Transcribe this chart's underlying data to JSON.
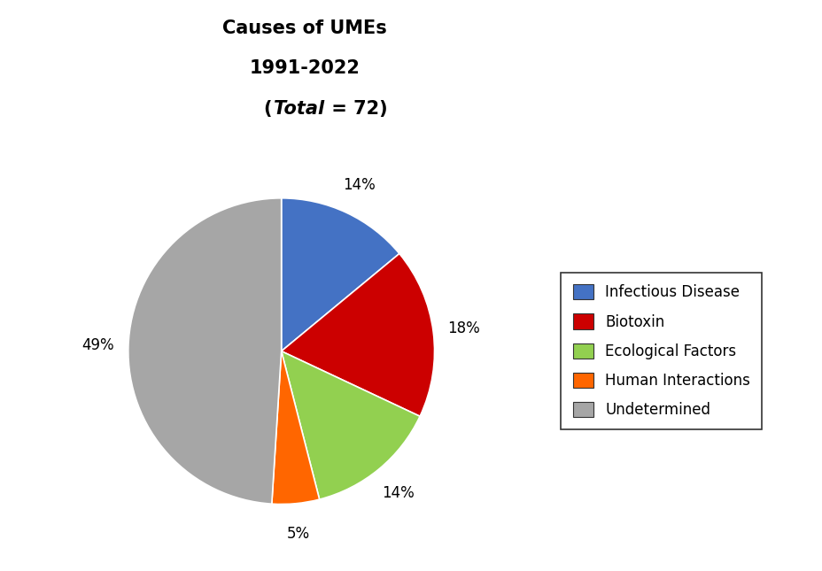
{
  "title_line1": "Causes of UMEs",
  "title_line2": "1991-2022",
  "title_line3_pre": "(",
  "title_line3_italic": "Total",
  "title_line3_post": " = 72)",
  "labels": [
    "Infectious Disease",
    "Biotoxin",
    "Ecological Factors",
    "Human Interactions",
    "Undetermined"
  ],
  "percentages": [
    14,
    18,
    14,
    5,
    49
  ],
  "colors": [
    "#4472C4",
    "#CC0000",
    "#92D050",
    "#FF6600",
    "#A6A6A6"
  ],
  "startangle": 90,
  "background_color": "#FFFFFF",
  "title_fontsize": 15,
  "legend_fontsize": 12,
  "pct_fontsize": 12
}
